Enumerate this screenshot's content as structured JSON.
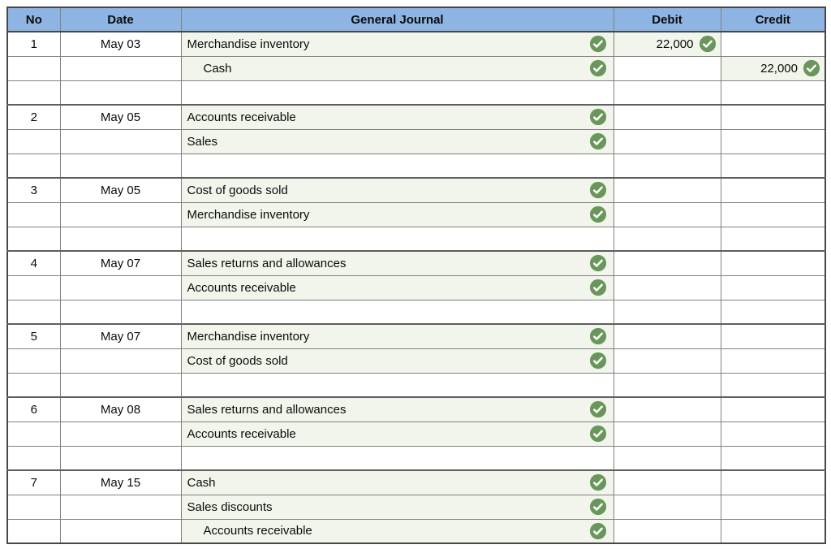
{
  "table": {
    "name": "general-journal-worksheet",
    "columns": [
      {
        "key": "no",
        "label": "No"
      },
      {
        "key": "date",
        "label": "Date"
      },
      {
        "key": "journal",
        "label": "General Journal"
      },
      {
        "key": "debit",
        "label": "Debit"
      },
      {
        "key": "credit",
        "label": "Credit"
      }
    ],
    "entries": [
      {
        "no": "1",
        "date": "May 03",
        "trailing_blank_row": true,
        "lines": [
          {
            "account": "Merchandise inventory",
            "indent": false,
            "account_checked": true,
            "debit": "22,000",
            "debit_checked": true,
            "credit": "",
            "credit_checked": false
          },
          {
            "account": "Cash",
            "indent": true,
            "account_checked": true,
            "debit": "",
            "debit_checked": false,
            "credit": "22,000",
            "credit_checked": true
          }
        ]
      },
      {
        "no": "2",
        "date": "May 05",
        "trailing_blank_row": true,
        "lines": [
          {
            "account": "Accounts receivable",
            "indent": false,
            "account_checked": true,
            "debit": "",
            "debit_checked": false,
            "credit": "",
            "credit_checked": false
          },
          {
            "account": "Sales",
            "indent": false,
            "account_checked": true,
            "debit": "",
            "debit_checked": false,
            "credit": "",
            "credit_checked": false
          }
        ]
      },
      {
        "no": "3",
        "date": "May 05",
        "trailing_blank_row": true,
        "lines": [
          {
            "account": "Cost of goods sold",
            "indent": false,
            "account_checked": true,
            "debit": "",
            "debit_checked": false,
            "credit": "",
            "credit_checked": false
          },
          {
            "account": "Merchandise inventory",
            "indent": false,
            "account_checked": true,
            "debit": "",
            "debit_checked": false,
            "credit": "",
            "credit_checked": false
          }
        ]
      },
      {
        "no": "4",
        "date": "May 07",
        "trailing_blank_row": true,
        "lines": [
          {
            "account": "Sales returns and allowances",
            "indent": false,
            "account_checked": true,
            "debit": "",
            "debit_checked": false,
            "credit": "",
            "credit_checked": false
          },
          {
            "account": "Accounts receivable",
            "indent": false,
            "account_checked": true,
            "debit": "",
            "debit_checked": false,
            "credit": "",
            "credit_checked": false
          }
        ]
      },
      {
        "no": "5",
        "date": "May 07",
        "trailing_blank_row": true,
        "lines": [
          {
            "account": "Merchandise inventory",
            "indent": false,
            "account_checked": true,
            "debit": "",
            "debit_checked": false,
            "credit": "",
            "credit_checked": false
          },
          {
            "account": "Cost of goods sold",
            "indent": false,
            "account_checked": true,
            "debit": "",
            "debit_checked": false,
            "credit": "",
            "credit_checked": false
          }
        ]
      },
      {
        "no": "6",
        "date": "May 08",
        "trailing_blank_row": true,
        "lines": [
          {
            "account": "Sales returns and allowances",
            "indent": false,
            "account_checked": true,
            "debit": "",
            "debit_checked": false,
            "credit": "",
            "credit_checked": false
          },
          {
            "account": "Accounts receivable",
            "indent": false,
            "account_checked": true,
            "debit": "",
            "debit_checked": false,
            "credit": "",
            "credit_checked": false
          }
        ]
      },
      {
        "no": "7",
        "date": "May 15",
        "trailing_blank_row": false,
        "lines": [
          {
            "account": "Cash",
            "indent": false,
            "account_checked": true,
            "debit": "",
            "debit_checked": false,
            "credit": "",
            "credit_checked": false
          },
          {
            "account": "Sales discounts",
            "indent": false,
            "account_checked": true,
            "debit": "",
            "debit_checked": false,
            "credit": "",
            "credit_checked": false
          },
          {
            "account": "Accounts receivable",
            "indent": true,
            "account_checked": true,
            "debit": "",
            "debit_checked": false,
            "credit": "",
            "credit_checked": false
          }
        ]
      }
    ]
  },
  "icons": {
    "check": "green-circle-white-checkmark"
  },
  "colors": {
    "header_bg": "#8DB4E2",
    "filled_cell_bg": "#F1F5EB",
    "check_green": "#69975B",
    "border_inner": "#818181",
    "border_outer": "#474747"
  }
}
